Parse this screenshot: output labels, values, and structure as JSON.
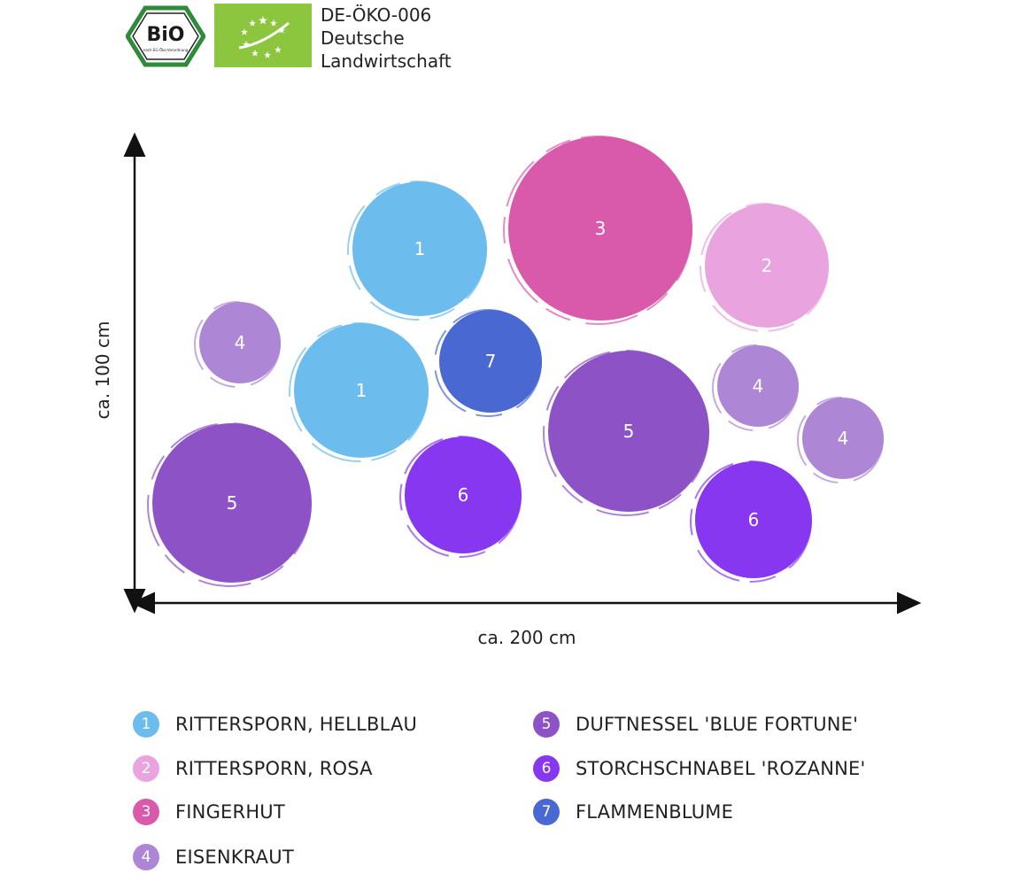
{
  "header": {
    "bio_logo_text": "BiO",
    "bio_logo_subtext": "nach EG-Öko-Verordnung",
    "cert_line1": "DE-ÖKO-006",
    "cert_line2": "Deutsche",
    "cert_line3": "Landwirtschaft"
  },
  "axes": {
    "y_label": "ca. 100 cm",
    "x_label": "ca. 200 cm"
  },
  "colors": {
    "1": "#6cbcee",
    "2": "#e9a3df",
    "3": "#d95aab",
    "4": "#ad86d6",
    "5": "#8c52c6",
    "6": "#8737f0",
    "7": "#4a68d2"
  },
  "plants": [
    {
      "number": "1",
      "label": "1"
    },
    {
      "number": "3",
      "label": "3"
    },
    {
      "number": "2",
      "label": "2"
    },
    {
      "number": "4",
      "label": "4"
    },
    {
      "number": "1",
      "label": "1"
    },
    {
      "number": "7",
      "label": "7"
    },
    {
      "number": "5",
      "label": "5"
    },
    {
      "number": "4",
      "label": "4"
    },
    {
      "number": "4",
      "label": "4"
    },
    {
      "number": "5",
      "label": "5"
    },
    {
      "number": "6",
      "label": "6"
    },
    {
      "number": "6",
      "label": "6"
    }
  ],
  "legend": [
    {
      "number": "1",
      "name": "RITTERSPORN, HELLBLAU"
    },
    {
      "number": "2",
      "name": "RITTERSPORN, ROSA"
    },
    {
      "number": "3",
      "name": "FINGERHUT"
    },
    {
      "number": "4",
      "name": "EISENKRAUT"
    },
    {
      "number": "5",
      "name": "DUFTNESSEL 'BLUE FORTUNE'"
    },
    {
      "number": "6",
      "name": "STORCHSCHNABEL 'ROZANNE'"
    },
    {
      "number": "7",
      "name": "FLAMMENBLUME"
    }
  ]
}
